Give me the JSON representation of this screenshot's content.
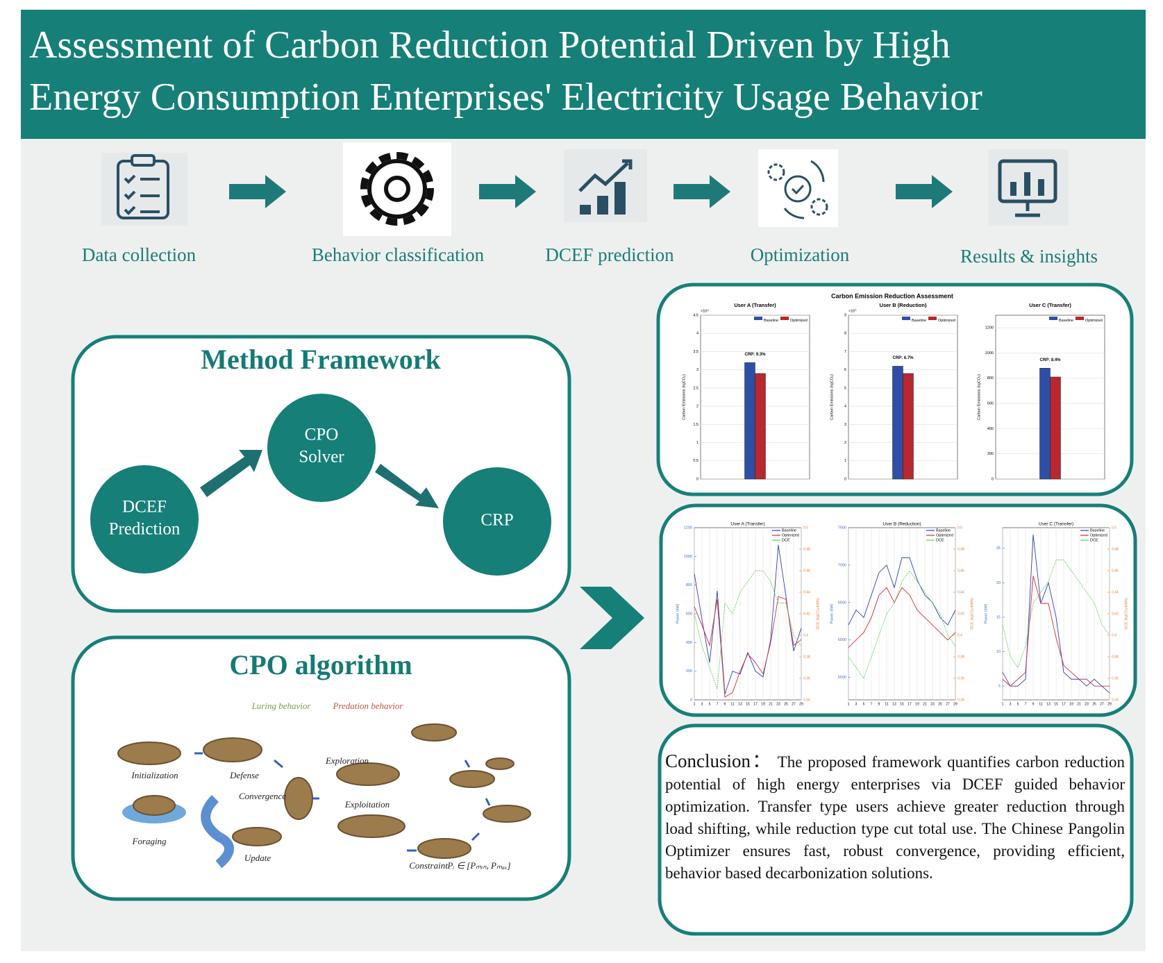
{
  "header": {
    "title": [
      "Assessment of Carbon Reduction Potential Driven by High",
      "Energy Consumption Enterprises' Electricity Usage Behavior"
    ]
  },
  "pipeline": [
    "Data collection",
    "Behavior classification",
    "DCEF prediction",
    "Optimization",
    "Results & insights"
  ],
  "method_framework": {
    "title": "Method Framework",
    "nodes": [
      [
        "DCEF",
        "Prediction"
      ],
      [
        "CPO",
        "Solver"
      ],
      [
        "CRP"
      ]
    ]
  },
  "cpo_algorithm": {
    "title": "CPO algorithm",
    "phases": [
      "Luring behavior",
      "Predation behavior"
    ],
    "steps": [
      "Initialization",
      "Defense",
      "Convergence",
      "Foraging",
      "Update",
      "Exploration",
      "Exploitation",
      "Constraint"
    ],
    "constraint_formula": "Pᵢ ∈ [Pₘᵢₙ, Pₘₐₓ]"
  },
  "charts_panel": {
    "title": "Carbon Emission Reduction Assessment"
  },
  "chart_data": [
    {
      "type": "bar",
      "title": "User A (Transfer)",
      "y_label": "Carbon Emissions (kgCO₂)",
      "y_multiplier": "×10⁴",
      "annotation": "CRP: 9.3%",
      "legend": "upper right",
      "grid": true,
      "ylim": [
        0,
        4.5
      ],
      "yticks": [
        0,
        0.5,
        1,
        1.5,
        2,
        2.5,
        3,
        3.5,
        4,
        4.5
      ],
      "series": [
        {
          "name": "Baseline",
          "color": "#2f4fa6",
          "values": [
            3.2
          ]
        },
        {
          "name": "Optimized",
          "color": "#b8282e",
          "values": [
            2.9
          ]
        }
      ]
    },
    {
      "type": "bar",
      "title": "User B (Reduction)",
      "y_label": "Carbon Emissions (kgCO₂)",
      "y_multiplier": "×10⁵",
      "annotation": "CRP: 6.7%",
      "legend": "upper right",
      "grid": true,
      "ylim": [
        0,
        9
      ],
      "yticks": [
        0,
        1,
        2,
        3,
        4,
        5,
        6,
        7,
        8,
        9
      ],
      "series": [
        {
          "name": "Baseline",
          "color": "#2f4fa6",
          "values": [
            6.2
          ]
        },
        {
          "name": "Optimized",
          "color": "#b8282e",
          "values": [
            5.8
          ]
        }
      ]
    },
    {
      "type": "bar",
      "title": "User C (Transfer)",
      "y_label": "Carbon Emissions (kgCO₂)",
      "annotation": "CRP: 8.4%",
      "legend": "upper right",
      "grid": true,
      "ylim": [
        0,
        1300
      ],
      "yticks": [
        0,
        200,
        400,
        600,
        800,
        1000,
        1200
      ],
      "series": [
        {
          "name": "Baseline",
          "color": "#2f4fa6",
          "values": [
            880
          ]
        },
        {
          "name": "Optimized",
          "color": "#b8282e",
          "values": [
            810
          ]
        }
      ]
    },
    {
      "type": "line",
      "title": "User A (Transfer)",
      "y_label": "Power (kW)",
      "y2_label": "DCE (kgCO₂/kWh)",
      "legend": "upper right",
      "grid": true,
      "x": [
        1,
        3,
        5,
        7,
        9,
        11,
        13,
        15,
        17,
        19,
        21,
        23,
        25,
        27,
        29
      ],
      "xlim": [
        1,
        29
      ],
      "xticks": [
        1,
        3,
        5,
        7,
        9,
        11,
        13,
        15,
        17,
        19,
        21,
        23,
        25,
        27,
        29
      ],
      "ylim": [
        0,
        1200
      ],
      "yticks": [
        0,
        200,
        400,
        600,
        800,
        1000,
        1200
      ],
      "y2lim": [
        0.34,
        0.5
      ],
      "y2ticks": [
        0.34,
        0.36,
        0.38,
        0.4,
        0.42,
        0.44,
        0.46,
        0.48,
        0.5
      ],
      "series": [
        {
          "name": "Baseline",
          "color": "#2f3fb0",
          "values": [
            880,
            560,
            260,
            760,
            40,
            200,
            180,
            330,
            200,
            160,
            420,
            1080,
            720,
            340,
            500
          ]
        },
        {
          "name": "Optimized",
          "color": "#c8303a",
          "values": [
            650,
            520,
            380,
            700,
            20,
            50,
            200,
            320,
            260,
            180,
            400,
            720,
            700,
            380,
            420
          ]
        },
        {
          "name": "DCE",
          "color": "#5fcf5f",
          "axis": "y2",
          "values": [
            0.42,
            0.39,
            0.37,
            0.35,
            0.43,
            0.42,
            0.44,
            0.45,
            0.46,
            0.46,
            0.45,
            0.43,
            0.43,
            0.4,
            0.39
          ]
        }
      ]
    },
    {
      "type": "line",
      "title": "User B (Reduction)",
      "y_label": "Power (kW)",
      "y2_label": "DCE (kgCO₂/kWh)",
      "legend": "upper right",
      "grid": true,
      "x": [
        1,
        3,
        5,
        7,
        9,
        11,
        13,
        15,
        17,
        19,
        21,
        23,
        25,
        27,
        29
      ],
      "xlim": [
        1,
        29
      ],
      "xticks": [
        1,
        3,
        5,
        7,
        9,
        11,
        13,
        15,
        17,
        19,
        21,
        23,
        25,
        27,
        29
      ],
      "ylim": [
        5200,
        7500
      ],
      "yticks": [
        5500,
        6000,
        6500,
        7000,
        7500
      ],
      "y2lim": [
        0.34,
        0.5
      ],
      "y2ticks": [
        0.34,
        0.36,
        0.38,
        0.4,
        0.42,
        0.44,
        0.46,
        0.48,
        0.5
      ],
      "series": [
        {
          "name": "Baseline",
          "color": "#2f3fb0",
          "values": [
            6200,
            6400,
            6300,
            6600,
            6900,
            7000,
            6700,
            7100,
            7100,
            6800,
            6600,
            6500,
            6300,
            6200,
            6400
          ]
        },
        {
          "name": "Optimized",
          "color": "#c8303a",
          "values": [
            5900,
            6000,
            6100,
            6300,
            6600,
            6700,
            6500,
            6700,
            6600,
            6400,
            6300,
            6200,
            6100,
            6000,
            6100
          ]
        },
        {
          "name": "DCE",
          "color": "#5fcf5f",
          "axis": "y2",
          "values": [
            0.38,
            0.37,
            0.36,
            0.38,
            0.4,
            0.42,
            0.43,
            0.45,
            0.46,
            0.45,
            0.44,
            0.43,
            0.42,
            0.4,
            0.39
          ]
        }
      ]
    },
    {
      "type": "line",
      "title": "User C (Transfer)",
      "y_label": "Power (kW)",
      "y2_label": "DCE (kgCO₂/kWh)",
      "legend": "upper right",
      "grid": true,
      "x": [
        1,
        3,
        5,
        7,
        9,
        11,
        13,
        15,
        17,
        19,
        21,
        23,
        25,
        27,
        29
      ],
      "xlim": [
        1,
        29
      ],
      "xticks": [
        1,
        3,
        5,
        7,
        9,
        11,
        13,
        15,
        17,
        19,
        21,
        23,
        25,
        27,
        29
      ],
      "ylim": [
        3,
        28
      ],
      "yticks": [
        5,
        10,
        15,
        20,
        25
      ],
      "y2lim": [
        0.34,
        0.5
      ],
      "y2ticks": [
        0.34,
        0.36,
        0.38,
        0.4,
        0.42,
        0.44,
        0.46,
        0.48,
        0.5
      ],
      "series": [
        {
          "name": "Baseline",
          "color": "#2f3fb0",
          "values": [
            7,
            5,
            5,
            6,
            27,
            17,
            20,
            15,
            7,
            6,
            6,
            5,
            6,
            5,
            4
          ]
        },
        {
          "name": "Optimized",
          "color": "#c8303a",
          "values": [
            6,
            5,
            6,
            7,
            21,
            17,
            17,
            12,
            8,
            7,
            6,
            6,
            5,
            5,
            5
          ]
        },
        {
          "name": "DCE",
          "color": "#5fcf5f",
          "axis": "y2",
          "values": [
            0.41,
            0.38,
            0.37,
            0.39,
            0.43,
            0.44,
            0.45,
            0.47,
            0.47,
            0.46,
            0.45,
            0.44,
            0.43,
            0.41,
            0.4
          ]
        }
      ]
    }
  ],
  "conclusion": {
    "heading": "Conclusion：",
    "text": "The proposed framework quantifies carbon reduction potential of high energy enterprises via DCEF guided behavior optimization. Transfer type users achieve greater reduction through load shifting, while reduction type cut total use. The Chinese Pangolin Optimizer ensures fast, robust convergence, providing efficient, behavior based decarbonization solutions."
  }
}
